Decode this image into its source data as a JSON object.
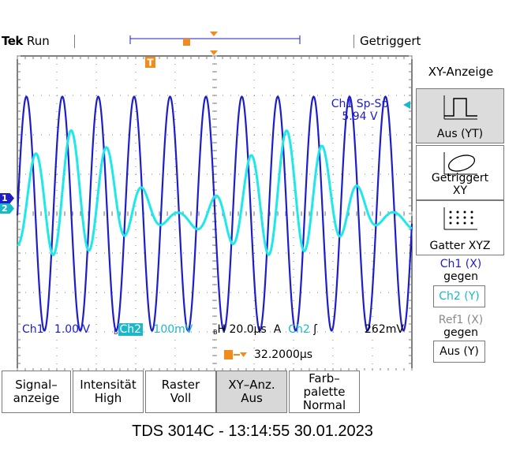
{
  "status": {
    "brand": "Tek",
    "run_state": "Run",
    "trigger_status": "Getriggert"
  },
  "channel_markers": {
    "ch1": "1",
    "ch2": "2"
  },
  "trigger_marker": "T",
  "measurement": {
    "label": "Ch1 Sp-Sp",
    "value": "5.94 V"
  },
  "readouts": {
    "ch1_label": "Ch1",
    "ch1_scale": "1.00 V",
    "ch2_label": "Ch2",
    "ch2_scale": "100mV",
    "bw_mark": "B",
    "timebase": "H 20.0µs",
    "trigger_mode": "A",
    "trigger_source": "Ch2",
    "trigger_slope": "ʃ",
    "trigger_level": "262mV",
    "trigger_position": "32.2000µs"
  },
  "side_menu": {
    "title": "XY-Anzeige",
    "option1": "Aus (YT)",
    "option2_line1": "Getriggert",
    "option2_line2": "XY",
    "option3": "Gatter XYZ",
    "ch1_vs_line1": "Ch1 (X)",
    "ch1_vs_line2": "gegen",
    "ch1_vs_value": "Ch2 (Y)",
    "ref1_vs_line1": "Ref1 (X)",
    "ref1_vs_line2": "gegen",
    "ref1_vs_value": "Aus (Y)"
  },
  "bottom_menu": [
    {
      "line1": "Signal–",
      "line2": "anzeige"
    },
    {
      "line1": "Intensität",
      "line2": "High"
    },
    {
      "line1": "Raster",
      "line2": "Voll"
    },
    {
      "line1": "XY–Anz.",
      "line2": "Aus"
    },
    {
      "line1": "Farb–",
      "line2": "palette",
      "line3": "Normal"
    }
  ],
  "caption": "TDS 3014C - 13:14:55   30.01.2023",
  "colors": {
    "ch1": "#1e1ec8",
    "ch2": "#1ee8e8",
    "trigger": "#f08c1e",
    "grid": "#808080",
    "frame": "#000000"
  },
  "waveform": {
    "ch1": {
      "amplitude_div": 2.97,
      "period_us": 18.2,
      "offset_div": 0
    },
    "ch2": {
      "amplitude_div": 0.9,
      "period_us": 18.2,
      "beat_period_us": 110,
      "offset_div": 0.2
    }
  }
}
